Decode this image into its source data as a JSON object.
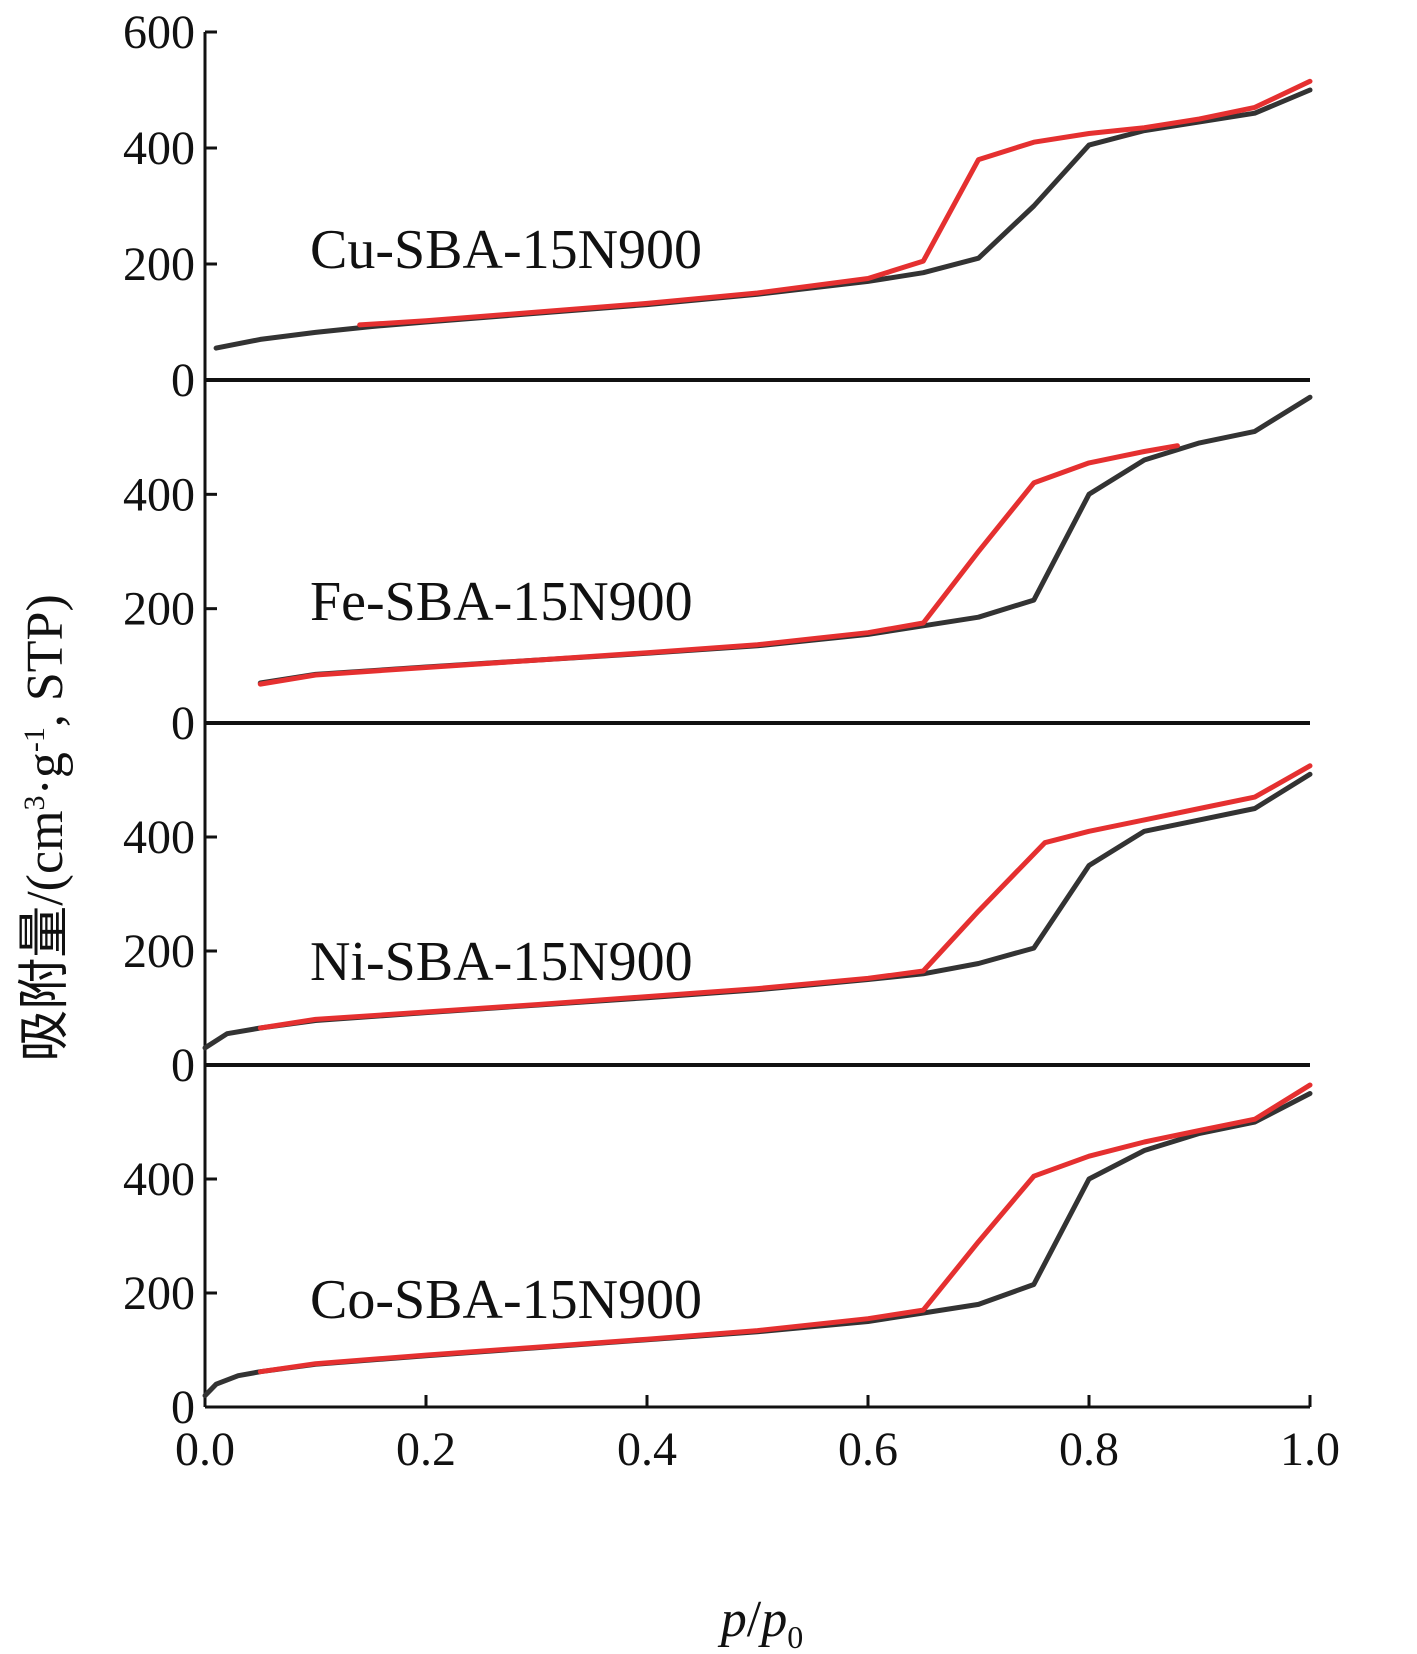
{
  "chart_data": {
    "type": "line",
    "xlabel": "p/p0",
    "xlabel_parts": {
      "p": "p",
      "sep": "/",
      "p0": "p",
      "sub": "0"
    },
    "ylabel": "吸附量/(cm³·g⁻¹, STP)",
    "ylabel_parts": {
      "pre": "吸附量/(cm",
      "sup3": "3",
      "mid": "·g",
      "supm1": "-1",
      "post": ", STP)"
    },
    "xlim": [
      0,
      1.0
    ],
    "x_ticks": [
      "0.0",
      "0.2",
      "0.4",
      "0.6",
      "0.8",
      "1.0"
    ],
    "x_tick_values": [
      0,
      0.2,
      0.4,
      0.6,
      0.8,
      1.0
    ],
    "series_colors": {
      "adsorption": "#333333",
      "desorption": "#e53030"
    },
    "panels": [
      {
        "label": "Cu-SBA-15N900",
        "ylim": [
          0,
          600
        ],
        "y_ticks": [
          "0",
          "200",
          "400",
          "600"
        ],
        "y_tick_values": [
          0,
          200,
          400,
          600
        ],
        "series": [
          {
            "color": "#333333",
            "points": [
              [
                0.01,
                55
              ],
              [
                0.05,
                70
              ],
              [
                0.1,
                82
              ],
              [
                0.15,
                92
              ],
              [
                0.2,
                100
              ],
              [
                0.3,
                115
              ],
              [
                0.4,
                130
              ],
              [
                0.5,
                148
              ],
              [
                0.6,
                170
              ],
              [
                0.65,
                185
              ],
              [
                0.7,
                210
              ],
              [
                0.75,
                300
              ],
              [
                0.8,
                405
              ],
              [
                0.85,
                430
              ],
              [
                0.9,
                445
              ],
              [
                0.95,
                460
              ],
              [
                1.0,
                500
              ]
            ]
          },
          {
            "color": "#e53030",
            "points": [
              [
                0.14,
                95
              ],
              [
                0.2,
                102
              ],
              [
                0.3,
                117
              ],
              [
                0.4,
                132
              ],
              [
                0.5,
                150
              ],
              [
                0.6,
                175
              ],
              [
                0.65,
                205
              ],
              [
                0.7,
                380
              ],
              [
                0.75,
                410
              ],
              [
                0.8,
                425
              ],
              [
                0.85,
                435
              ],
              [
                0.9,
                450
              ],
              [
                0.95,
                470
              ],
              [
                1.0,
                515
              ]
            ]
          }
        ]
      },
      {
        "label": "Fe-SBA-15N900",
        "ylim": [
          0,
          600
        ],
        "y_ticks": [
          "0",
          "200",
          "400"
        ],
        "y_tick_values": [
          0,
          200,
          400
        ],
        "series": [
          {
            "color": "#333333",
            "points": [
              [
                0.05,
                70
              ],
              [
                0.1,
                85
              ],
              [
                0.2,
                98
              ],
              [
                0.3,
                110
              ],
              [
                0.4,
                122
              ],
              [
                0.5,
                135
              ],
              [
                0.6,
                155
              ],
              [
                0.65,
                170
              ],
              [
                0.7,
                185
              ],
              [
                0.75,
                215
              ],
              [
                0.8,
                400
              ],
              [
                0.85,
                460
              ],
              [
                0.9,
                490
              ],
              [
                0.95,
                510
              ],
              [
                1.0,
                570
              ]
            ]
          },
          {
            "color": "#e53030",
            "points": [
              [
                0.05,
                68
              ],
              [
                0.1,
                84
              ],
              [
                0.2,
                97
              ],
              [
                0.3,
                110
              ],
              [
                0.4,
                123
              ],
              [
                0.5,
                137
              ],
              [
                0.6,
                158
              ],
              [
                0.65,
                175
              ],
              [
                0.7,
                300
              ],
              [
                0.75,
                420
              ],
              [
                0.8,
                455
              ],
              [
                0.85,
                475
              ],
              [
                0.88,
                485
              ]
            ]
          }
        ]
      },
      {
        "label": "Ni-SBA-15N900",
        "ylim": [
          0,
          600
        ],
        "y_ticks": [
          "0",
          "200",
          "400"
        ],
        "y_tick_values": [
          0,
          200,
          400
        ],
        "series": [
          {
            "color": "#333333",
            "points": [
              [
                0.0,
                30
              ],
              [
                0.02,
                55
              ],
              [
                0.05,
                65
              ],
              [
                0.1,
                78
              ],
              [
                0.2,
                92
              ],
              [
                0.3,
                105
              ],
              [
                0.4,
                118
              ],
              [
                0.5,
                132
              ],
              [
                0.6,
                150
              ],
              [
                0.65,
                160
              ],
              [
                0.7,
                178
              ],
              [
                0.75,
                205
              ],
              [
                0.8,
                350
              ],
              [
                0.85,
                410
              ],
              [
                0.9,
                430
              ],
              [
                0.95,
                450
              ],
              [
                1.0,
                510
              ]
            ]
          },
          {
            "color": "#e53030",
            "points": [
              [
                0.05,
                65
              ],
              [
                0.1,
                80
              ],
              [
                0.2,
                93
              ],
              [
                0.3,
                106
              ],
              [
                0.4,
                120
              ],
              [
                0.5,
                134
              ],
              [
                0.6,
                152
              ],
              [
                0.65,
                165
              ],
              [
                0.7,
                270
              ],
              [
                0.76,
                390
              ],
              [
                0.8,
                410
              ],
              [
                0.85,
                430
              ],
              [
                0.9,
                450
              ],
              [
                0.95,
                470
              ],
              [
                1.0,
                525
              ]
            ]
          }
        ]
      },
      {
        "label": "Co-SBA-15N900",
        "ylim": [
          0,
          600
        ],
        "y_ticks": [
          "0",
          "200",
          "400"
        ],
        "y_tick_values": [
          0,
          200,
          400
        ],
        "series": [
          {
            "color": "#333333",
            "points": [
              [
                0.0,
                20
              ],
              [
                0.01,
                40
              ],
              [
                0.03,
                55
              ],
              [
                0.05,
                62
              ],
              [
                0.1,
                75
              ],
              [
                0.2,
                90
              ],
              [
                0.3,
                104
              ],
              [
                0.4,
                118
              ],
              [
                0.5,
                132
              ],
              [
                0.6,
                150
              ],
              [
                0.65,
                165
              ],
              [
                0.7,
                180
              ],
              [
                0.75,
                215
              ],
              [
                0.8,
                400
              ],
              [
                0.85,
                450
              ],
              [
                0.9,
                480
              ],
              [
                0.95,
                500
              ],
              [
                1.0,
                550
              ]
            ]
          },
          {
            "color": "#e53030",
            "points": [
              [
                0.05,
                62
              ],
              [
                0.1,
                76
              ],
              [
                0.2,
                91
              ],
              [
                0.3,
                105
              ],
              [
                0.4,
                119
              ],
              [
                0.5,
                134
              ],
              [
                0.6,
                155
              ],
              [
                0.65,
                170
              ],
              [
                0.7,
                290
              ],
              [
                0.75,
                405
              ],
              [
                0.8,
                440
              ],
              [
                0.85,
                465
              ],
              [
                0.9,
                485
              ],
              [
                0.95,
                505
              ],
              [
                1.0,
                565
              ]
            ]
          }
        ]
      }
    ]
  }
}
